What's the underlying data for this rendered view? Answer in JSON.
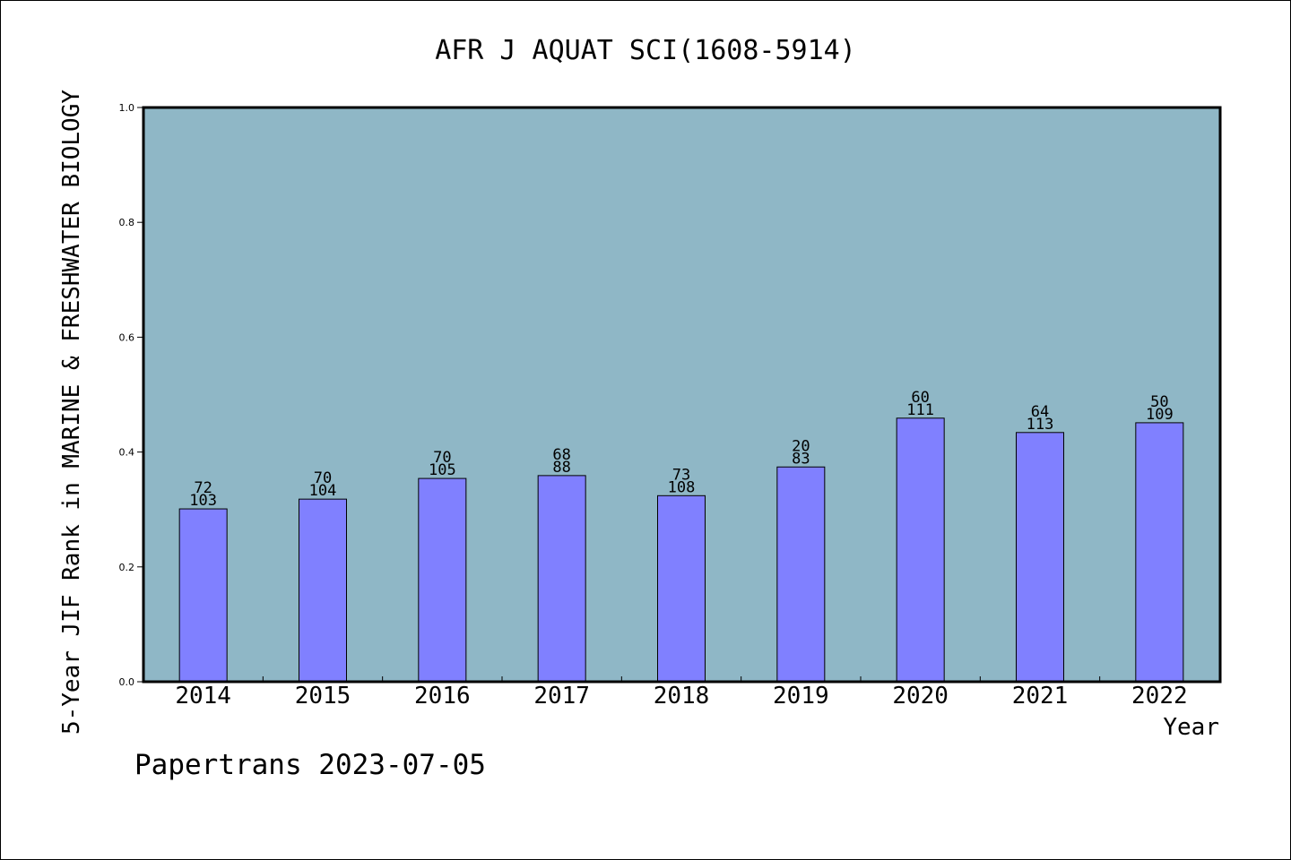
{
  "chart_data": {
    "type": "bar",
    "title": "AFR J AQUAT SCI(1608-5914)",
    "xlabel": "Year",
    "ylabel": "5-Year JIF Rank in MARINE & FRESHWATER BIOLOGY",
    "ylim": [
      0,
      1.0
    ],
    "yticks": [
      "0.0",
      "0.2",
      "0.4",
      "0.6",
      "0.8",
      "1.0"
    ],
    "categories": [
      "2014",
      "2015",
      "2016",
      "2017",
      "2018",
      "2019",
      "2020",
      "2021",
      "2022"
    ],
    "values": [
      0.301,
      0.318,
      0.354,
      0.359,
      0.324,
      0.374,
      0.459,
      0.434,
      0.451
    ],
    "labels_top": [
      "72",
      "70",
      "70",
      "68",
      "73",
      "20",
      "60",
      "64",
      "50"
    ],
    "labels_bottom": [
      "103",
      "104",
      "105",
      "88",
      "108",
      "83",
      "111",
      "113",
      "109"
    ],
    "grid": false,
    "colors": {
      "plot_bg": "#8fb7c6",
      "bar": "#8080ff",
      "bar_edge": "#000000"
    }
  },
  "footer": {
    "text": "Papertrans 2023-07-05"
  }
}
